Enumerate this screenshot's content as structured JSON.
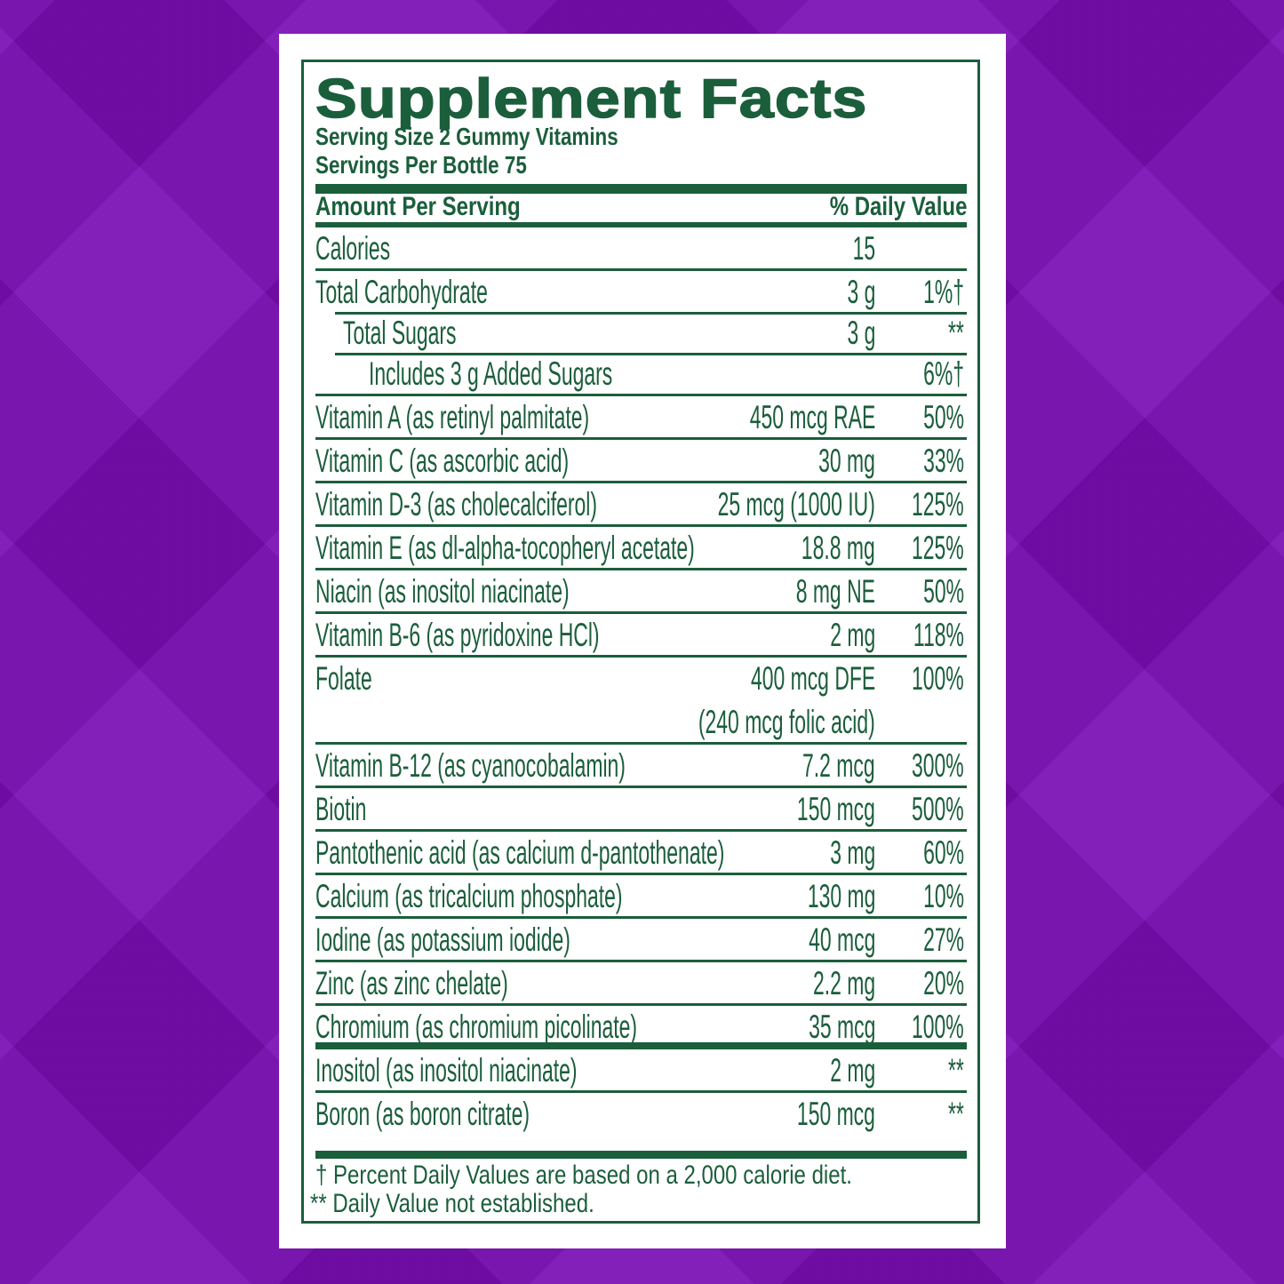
{
  "title": "Supplement Facts",
  "serving_size": "Serving Size 2 Gummy Vitamins",
  "servings_per_container": "Servings Per Bottle 75",
  "header": {
    "amount": "Amount Per Serving",
    "dv": "% Daily Value"
  },
  "rows": [
    {
      "name": "Calories",
      "amount": "15",
      "dv": ""
    },
    {
      "name": "Total Carbohydrate",
      "amount": "3 g",
      "dv": "1%†"
    },
    {
      "name": "Total Sugars",
      "amount": "3 g",
      "dv": "**"
    },
    {
      "name": "Includes 3 g Added Sugars",
      "amount": "",
      "dv": "6%†"
    },
    {
      "name": "Vitamin A (as retinyl palmitate)",
      "amount": "450 mcg RAE",
      "dv": "50%"
    },
    {
      "name": "Vitamin C (as ascorbic acid)",
      "amount": "30 mg",
      "dv": "33%"
    },
    {
      "name": "Vitamin D-3 (as cholecalciferol)",
      "amount": "25 mcg (1000 IU)",
      "dv": "125%"
    },
    {
      "name": "Vitamin E (as dl-alpha-tocopheryl acetate)",
      "amount": "18.8 mg",
      "dv": "125%"
    },
    {
      "name": "Niacin (as inositol niacinate)",
      "amount": "8 mg NE",
      "dv": "50%"
    },
    {
      "name": "Vitamin B-6 (as pyridoxine HCl)",
      "amount": "2 mg",
      "dv": "118%"
    },
    {
      "name": "Folate",
      "amount": "400 mcg DFE",
      "amount_note": "(240 mcg folic acid)",
      "dv": "100%"
    },
    {
      "name": "Vitamin B-12 (as cyanocobalamin)",
      "amount": "7.2 mcg",
      "dv": "300%"
    },
    {
      "name": "Biotin",
      "amount": "150 mcg",
      "dv": "500%"
    },
    {
      "name": "Pantothenic acid (as calcium d-pantothenate)",
      "amount": "3 mg",
      "dv": "60%"
    },
    {
      "name": "Calcium (as tricalcium phosphate)",
      "amount": "130 mg",
      "dv": "10%"
    },
    {
      "name": "Iodine (as potassium iodide)",
      "amount": "40 mcg",
      "dv": "27%"
    },
    {
      "name": "Zinc (as zinc chelate)",
      "amount": "2.2 mg",
      "dv": "20%"
    },
    {
      "name": "Chromium (as chromium picolinate)",
      "amount": "35 mcg",
      "dv": "100%"
    },
    {
      "name": "Inositol (as inositol niacinate)",
      "amount": "2 mg",
      "dv": "**"
    },
    {
      "name": "Boron (as boron citrate)",
      "amount": "150 mcg",
      "dv": "**"
    }
  ],
  "footnotes": [
    "† Percent Daily Values are based on a 2,000 calorie diet.",
    "** Daily Value not established."
  ],
  "colors": {
    "label_green": "#1b5e3b",
    "background_purple": "#7a0eb4"
  }
}
